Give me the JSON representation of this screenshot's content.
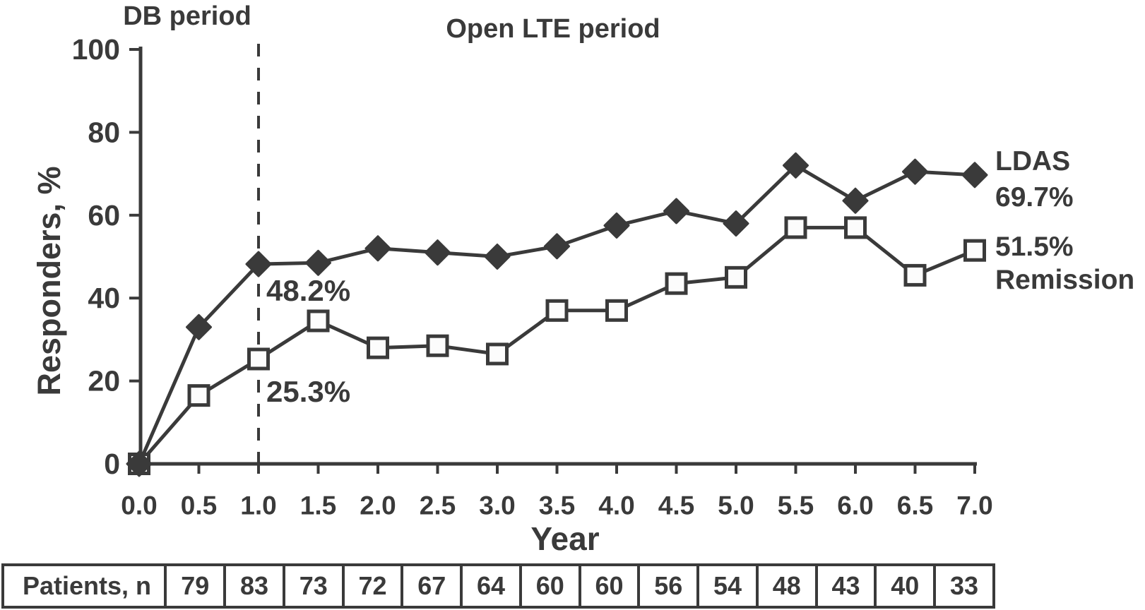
{
  "colors": {
    "ink": "#3a3a3a",
    "background": "#ffffff",
    "marker_fill_open": "#fcfcfc"
  },
  "titles": {
    "db_period": "DB period",
    "open_lte_period": "Open LTE period"
  },
  "y_axis": {
    "label": "Responders, %",
    "tick_labels": [
      "0",
      "20",
      "40",
      "60",
      "80",
      "100"
    ],
    "range": [
      0,
      100
    ]
  },
  "x_axis": {
    "label": "Year",
    "tick_labels": [
      "0.0",
      "0.5",
      "1.0",
      "1.5",
      "2.0",
      "2.5",
      "3.0",
      "3.5",
      "4.0",
      "4.5",
      "5.0",
      "5.5",
      "6.0",
      "6.5",
      "7.0"
    ],
    "range": [
      0,
      7
    ]
  },
  "annotations": {
    "ldas_year1": "48.2%",
    "remission_year1": "25.3%",
    "ldas_end_name": "LDAS",
    "ldas_end_value": "69.7%",
    "remission_end_value": "51.5%",
    "remission_end_name": "Remission"
  },
  "patients_table": {
    "header": "Patients, n",
    "values": [
      "79",
      "83",
      "73",
      "72",
      "67",
      "64",
      "60",
      "60",
      "56",
      "54",
      "48",
      "43",
      "40",
      "33"
    ]
  },
  "chart_data": {
    "type": "line",
    "title": "",
    "xlabel": "Year",
    "ylabel": "Responders, %",
    "xlim": [
      0,
      7
    ],
    "ylim": [
      0,
      100
    ],
    "grid": false,
    "x": [
      0,
      0.5,
      1.0,
      1.5,
      2.0,
      2.5,
      3.0,
      3.5,
      4.0,
      4.5,
      5.0,
      5.5,
      6.0,
      6.5,
      7.0
    ],
    "series": [
      {
        "name": "LDAS",
        "marker": "filled-diamond",
        "values": [
          0,
          33,
          48.2,
          48.5,
          52,
          51,
          50,
          52.5,
          57.5,
          61,
          58,
          72,
          63.5,
          70.5,
          69.7
        ]
      },
      {
        "name": "Remission",
        "marker": "open-square",
        "values": [
          0,
          16.5,
          25.3,
          34.5,
          28,
          28.5,
          26.5,
          37,
          37,
          43.5,
          45,
          57,
          57,
          45.5,
          51.5
        ]
      }
    ],
    "reference_lines": [
      {
        "axis": "x",
        "value": 1.0,
        "style": "dashed",
        "meaning": "end of DB period / start of open LTE period"
      }
    ],
    "period_labels": [
      {
        "text": "DB period",
        "x_range": [
          0,
          1.0
        ]
      },
      {
        "text": "Open LTE period",
        "x_range": [
          1.0,
          7.0
        ]
      }
    ],
    "patients_n": {
      "x": [
        0.5,
        1.0,
        1.5,
        2.0,
        2.5,
        3.0,
        3.5,
        4.0,
        4.5,
        5.0,
        5.5,
        6.0,
        6.5,
        7.0
      ],
      "values": [
        79,
        83,
        73,
        72,
        67,
        64,
        60,
        60,
        56,
        54,
        48,
        43,
        40,
        33
      ]
    }
  }
}
